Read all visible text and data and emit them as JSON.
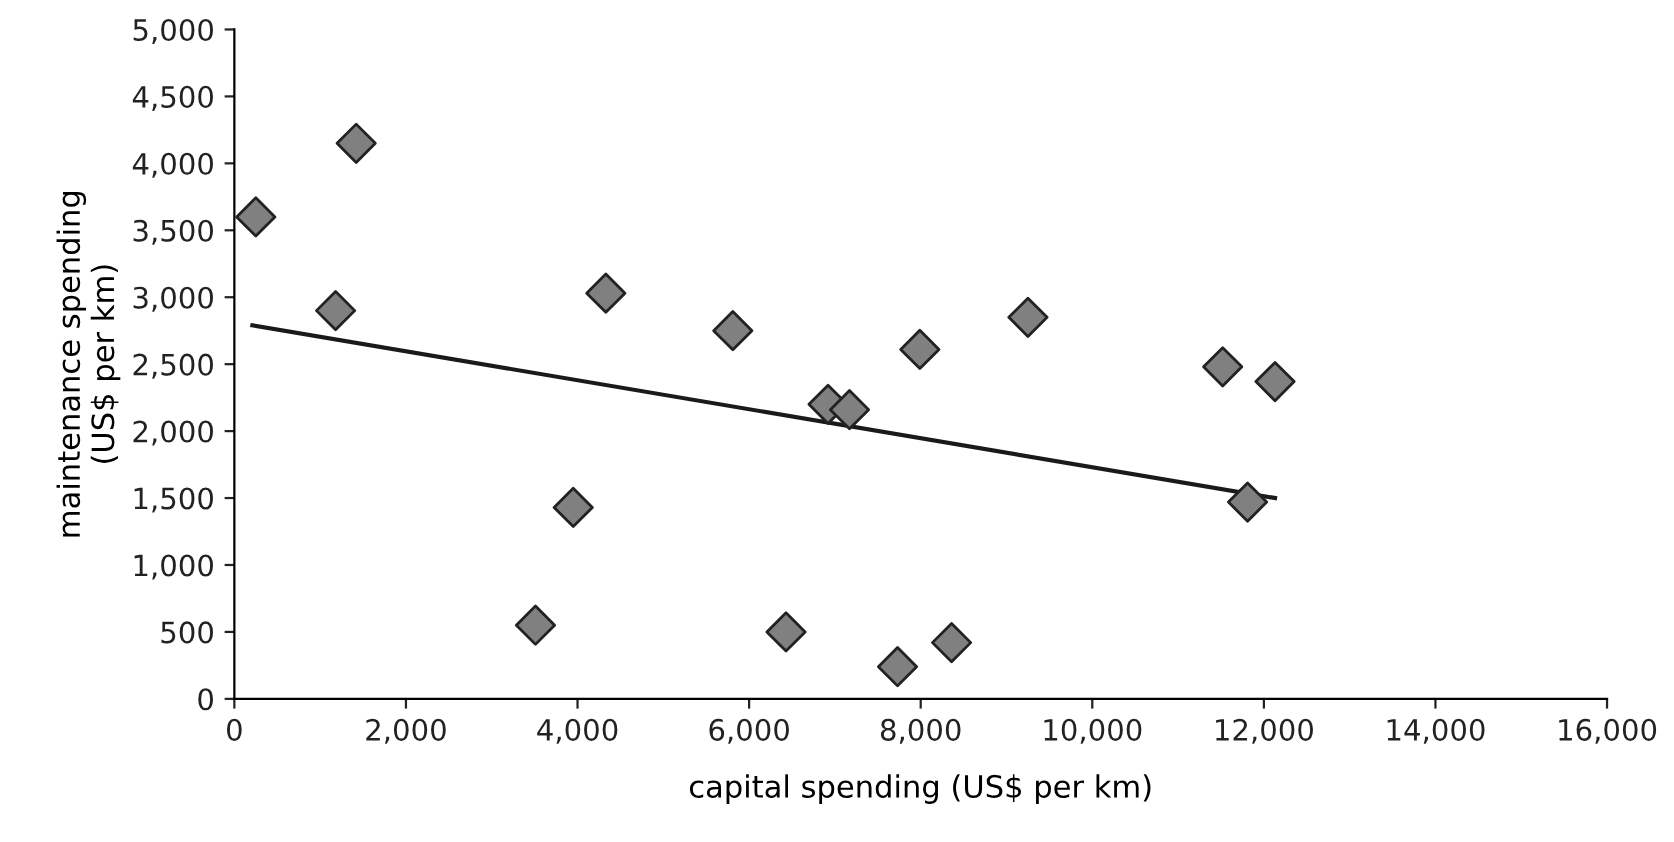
{
  "chart_data": {
    "type": "scatter",
    "xlabel": "capital spending (US$ per km)",
    "ylabel": "maintenance spending\n(US$ per km)",
    "xlim": [
      0,
      16000
    ],
    "xticks": [
      {
        "value": 0,
        "label": "0"
      },
      {
        "value": 2000,
        "label": "2,000"
      },
      {
        "value": 4000,
        "label": "4,000"
      },
      {
        "value": 6000,
        "label": "6,000"
      },
      {
        "value": 8000,
        "label": "8,000"
      },
      {
        "value": 10000,
        "label": "10,000"
      },
      {
        "value": 12000,
        "label": "12,000"
      },
      {
        "value": 14000,
        "label": "14,000"
      },
      {
        "value": 16000,
        "label": "16,000"
      }
    ],
    "ylim": [
      0,
      5000
    ],
    "yticks": [
      {
        "value": 0,
        "label": "0"
      },
      {
        "value": 500,
        "label": "500"
      },
      {
        "value": 1000,
        "label": "1,000"
      },
      {
        "value": 1500,
        "label": "1,500"
      },
      {
        "value": 2000,
        "label": "2,000"
      },
      {
        "value": 2500,
        "label": "2,500"
      },
      {
        "value": 3000,
        "label": "3,000"
      },
      {
        "value": 3500,
        "label": "3,500"
      },
      {
        "value": 4000,
        "label": "4,000"
      },
      {
        "value": 4500,
        "label": "4,500"
      },
      {
        "value": 5000,
        "label": "5,000"
      }
    ],
    "grid": false,
    "legend": false,
    "series": [
      {
        "marker": "diamond",
        "color": "#808080",
        "x": [
          250,
          1420,
          1180,
          4330,
          3950,
          3510,
          5810,
          6430,
          6920,
          7170,
          7730,
          7990,
          8360,
          9250,
          11520,
          12130,
          11810
        ],
        "values": [
          3600,
          4150,
          2900,
          3030,
          1430,
          550,
          2750,
          500,
          2200,
          2160,
          240,
          2610,
          420,
          2850,
          2480,
          2370,
          1470
        ]
      },
      {
        "type": "line",
        "marker": "none",
        "line_style": "solid",
        "color": "#1a1a1a",
        "x": [
          210,
          12130
        ],
        "values": [
          2790,
          1500
        ]
      }
    ]
  }
}
